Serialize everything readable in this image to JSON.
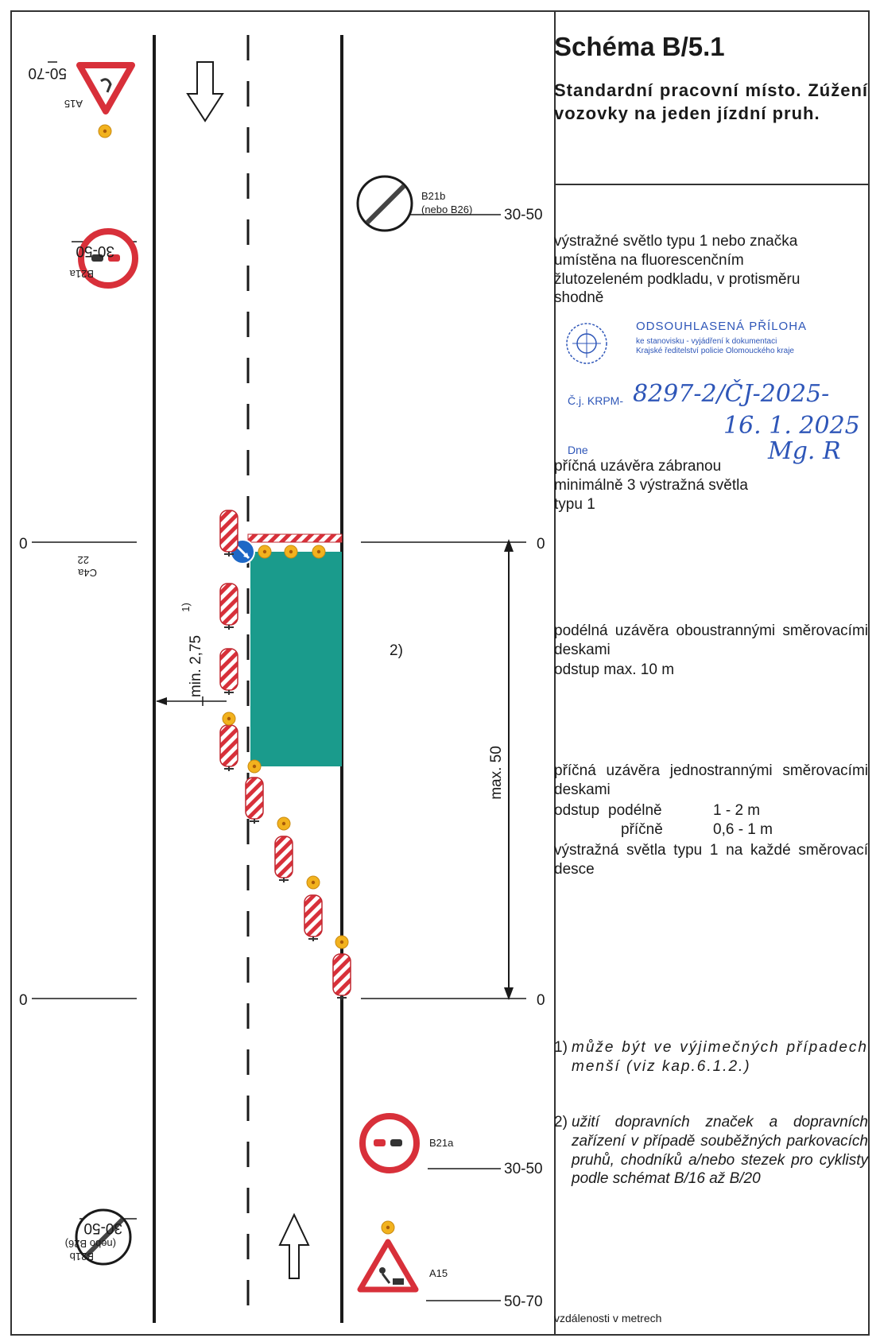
{
  "title": "Schéma B/5.1",
  "subtitle": "Standardní pracovní místo. Zúžení vozovky na jeden jízdní pruh.",
  "notes": {
    "warning_light": "výstražné světlo typu 1 nebo značka umístěna na fluorescenčním žlutozeleném podkladu, v protisměru shodně",
    "transverse_barrier": "příčná uzávěra zábranou minimálně 3 výstražná světla typu 1",
    "longitudinal": "podélná uzávěra oboustrannými směrovacími deskami",
    "longitudinal_spacing": "odstup max. 10 m",
    "transverse_boards": "příčná uzávěra jednostrannými směrovacími deskami",
    "spacing_label": "odstup",
    "spacing_long_label": "podélně",
    "spacing_long_value": "1 - 2 m",
    "spacing_trans_label": "příčně",
    "spacing_trans_value": "0,6 - 1 m",
    "lights_each": "výstražná světla typu 1 na každé směrovací desce"
  },
  "footnotes": [
    {
      "num": "1)",
      "text": "může být ve výjimečných případech menší (viz kap.6.1.2.)"
    },
    {
      "num": "2)",
      "text": "užití dopravních značek a dopravních zařízení v případě souběžných parkovacích pruhů, chodníků a/nebo stezek pro cyklisty podle schémat B/16 až B/20"
    }
  ],
  "units_note": "vzdálenosti v metrech",
  "stamp": {
    "heading": "ODSOUHLASENÁ PŘÍLOHA",
    "line1": "ke stanovisku - vyjádření k dokumentaci",
    "line2": "Krajské ředitelství policie Olomouckého kraje",
    "cj_label": "Č.j. KRPM-",
    "cj_value": "8297-2/ČJ-2025-",
    "date_value": "16. 1. 2025",
    "dne_label": "Dne",
    "signature": "Mg. R"
  },
  "diagram": {
    "signs": {
      "a15": "A15",
      "b21a": "B21a",
      "b21b": "B21b",
      "b26_alt": "(nebo B26)",
      "c4a": "C4a",
      "c4a_num": "22"
    },
    "distances": {
      "d50_70": "50-70",
      "d30_50": "30-50",
      "zero": "0",
      "max50": "max. 50",
      "min_width": "min. 2,75",
      "footnote1_ref": "1)",
      "footnote2_ref": "2)"
    },
    "colors": {
      "work_zone": "#1a9b8c",
      "sign_red": "#d8303a",
      "light_yellow": "#f2b21e",
      "c4a_blue": "#1e68c6",
      "stamp_blue": "#2e56b8"
    }
  }
}
